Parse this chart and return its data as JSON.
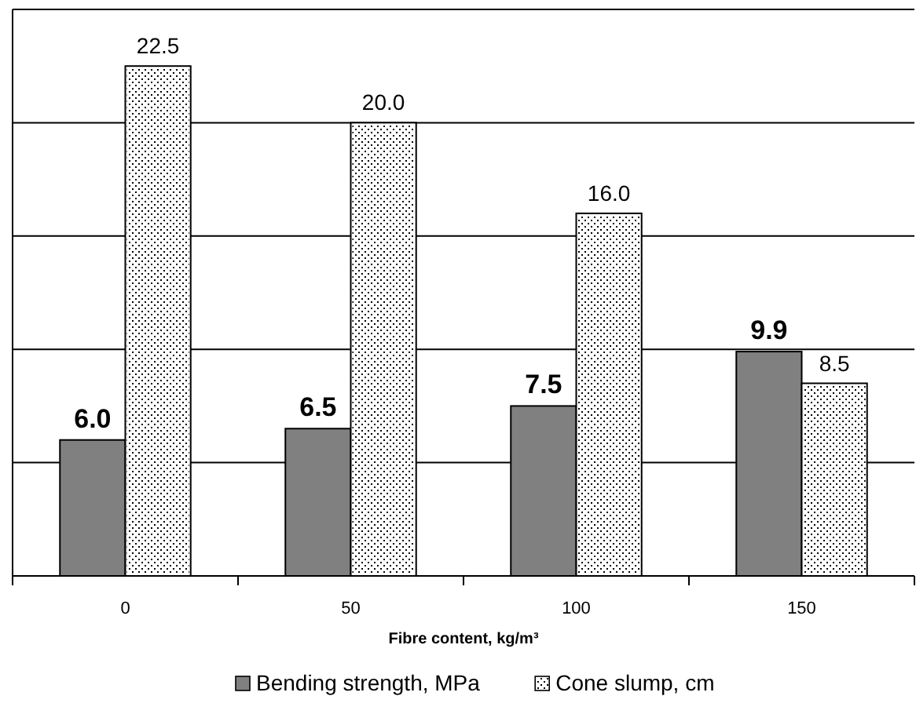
{
  "chart_data": {
    "type": "bar",
    "xlabel": "Fibre content, kg/m³",
    "categories": [
      "0",
      "50",
      "100",
      "150"
    ],
    "series": [
      {
        "name": "Bending strength, MPa",
        "color": "#808080",
        "values": [
          6.0,
          6.5,
          7.5,
          9.9
        ],
        "value_labels": [
          "6.0",
          "6.5",
          "7.5",
          "9.9"
        ]
      },
      {
        "name": "Cone slump, cm",
        "color": "#ffffff",
        "values": [
          22.5,
          20.0,
          16.0,
          8.5
        ],
        "value_labels": [
          "22.5",
          "20.0",
          "16.0",
          "8.5"
        ]
      }
    ],
    "ylim": [
      0,
      25
    ],
    "yticks": [
      {
        "value": 0,
        "label": null
      },
      {
        "value": 5,
        "label": null
      },
      {
        "value": 10,
        "label": null
      },
      {
        "value": 15,
        "label": null
      },
      {
        "value": 20,
        "label": null
      },
      {
        "value": 25,
        "label": null
      }
    ],
    "grid": "y",
    "tick_labels": "x",
    "legend": "bottom"
  }
}
